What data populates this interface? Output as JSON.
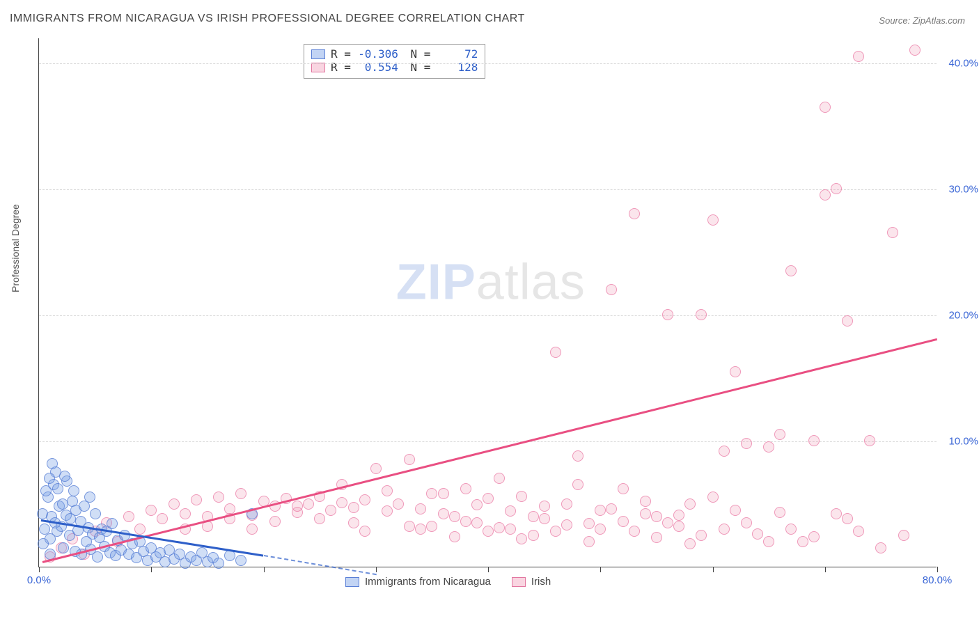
{
  "title": "IMMIGRANTS FROM NICARAGUA VS IRISH PROFESSIONAL DEGREE CORRELATION CHART",
  "source": {
    "label": "Source:",
    "value": "ZipAtlas.com"
  },
  "axes": {
    "ylabel": "Professional Degree",
    "xlim": [
      0,
      80
    ],
    "ylim": [
      0,
      42
    ],
    "xticks": [
      0,
      10,
      20,
      30,
      40,
      50,
      60,
      70,
      80
    ],
    "xtick_labels_shown": {
      "0": "0.0%",
      "80": "80.0%"
    },
    "yticks": [
      10,
      20,
      30,
      40
    ],
    "ytick_labels": {
      "10": "10.0%",
      "20": "20.0%",
      "30": "30.0%",
      "40": "40.0%"
    },
    "grid_color": "#d8d8d8",
    "tick_color": "#3a66d6"
  },
  "watermark": {
    "a": "ZIP",
    "b": "atlas"
  },
  "legend": {
    "series_a": "Immigrants from Nicaragua",
    "series_b": "Irish"
  },
  "stats": {
    "a": {
      "R": "-0.306",
      "N": "72"
    },
    "b": {
      "R": "0.554",
      "N": "128"
    }
  },
  "series": {
    "blue": {
      "color_fill": "rgba(120,160,230,0.35)",
      "color_stroke": "rgba(80,120,210,0.7)",
      "marker_radius": 8,
      "trend": {
        "x1": 0.2,
        "y1": 3.8,
        "x2": 20,
        "y2": 1.0,
        "dash_to_x": 30,
        "dash_to_y": -0.5
      },
      "points": [
        [
          0.3,
          4.2
        ],
        [
          0.5,
          3.0
        ],
        [
          0.8,
          5.5
        ],
        [
          1.0,
          2.2
        ],
        [
          1.1,
          4.0
        ],
        [
          1.3,
          6.5
        ],
        [
          1.4,
          3.5
        ],
        [
          1.5,
          7.5
        ],
        [
          1.6,
          2.8
        ],
        [
          1.8,
          4.8
        ],
        [
          2.0,
          3.2
        ],
        [
          2.1,
          5.0
        ],
        [
          2.2,
          1.5
        ],
        [
          2.4,
          4.1
        ],
        [
          2.5,
          6.8
        ],
        [
          2.7,
          2.5
        ],
        [
          2.8,
          3.8
        ],
        [
          3.0,
          5.2
        ],
        [
          3.2,
          1.2
        ],
        [
          3.3,
          4.5
        ],
        [
          3.5,
          2.9
        ],
        [
          3.7,
          3.6
        ],
        [
          3.8,
          1.0
        ],
        [
          4.0,
          4.8
        ],
        [
          4.2,
          2.0
        ],
        [
          4.4,
          3.1
        ],
        [
          4.6,
          1.4
        ],
        [
          4.8,
          2.6
        ],
        [
          5.0,
          4.2
        ],
        [
          5.2,
          0.8
        ],
        [
          5.4,
          2.3
        ],
        [
          5.6,
          3.0
        ],
        [
          5.8,
          1.6
        ],
        [
          6.0,
          2.8
        ],
        [
          6.3,
          1.1
        ],
        [
          6.5,
          3.4
        ],
        [
          6.8,
          0.9
        ],
        [
          7.0,
          2.1
        ],
        [
          7.3,
          1.3
        ],
        [
          7.6,
          2.5
        ],
        [
          8.0,
          1.0
        ],
        [
          8.3,
          1.8
        ],
        [
          8.7,
          0.7
        ],
        [
          9.0,
          2.0
        ],
        [
          9.3,
          1.2
        ],
        [
          9.7,
          0.5
        ],
        [
          10.0,
          1.5
        ],
        [
          10.4,
          0.8
        ],
        [
          10.8,
          1.1
        ],
        [
          11.2,
          0.4
        ],
        [
          11.6,
          1.3
        ],
        [
          12.0,
          0.6
        ],
        [
          12.5,
          1.0
        ],
        [
          13.0,
          0.3
        ],
        [
          13.5,
          0.8
        ],
        [
          14.0,
          0.5
        ],
        [
          14.5,
          1.1
        ],
        [
          15.0,
          0.4
        ],
        [
          15.5,
          0.7
        ],
        [
          16.0,
          0.3
        ],
        [
          17.0,
          0.9
        ],
        [
          18.0,
          0.5
        ],
        [
          19.0,
          4.2
        ],
        [
          1.2,
          8.2
        ],
        [
          2.3,
          7.2
        ],
        [
          0.6,
          6.0
        ],
        [
          0.9,
          7.0
        ],
        [
          1.7,
          6.2
        ],
        [
          3.1,
          6.0
        ],
        [
          4.5,
          5.5
        ],
        [
          0.4,
          1.8
        ],
        [
          1.0,
          1.0
        ]
      ]
    },
    "pink": {
      "color_fill": "rgba(240,150,180,0.25)",
      "color_stroke": "rgba(230,100,150,0.6)",
      "marker_radius": 8,
      "trend": {
        "x1": 0.3,
        "y1": 0.5,
        "x2": 80,
        "y2": 18.2
      },
      "points": [
        [
          1,
          0.8
        ],
        [
          2,
          1.5
        ],
        [
          3,
          2.2
        ],
        [
          4,
          1.0
        ],
        [
          5,
          2.8
        ],
        [
          6,
          3.5
        ],
        [
          7,
          2.0
        ],
        [
          8,
          4.0
        ],
        [
          9,
          3.0
        ],
        [
          10,
          4.5
        ],
        [
          11,
          3.8
        ],
        [
          12,
          5.0
        ],
        [
          13,
          4.2
        ],
        [
          14,
          5.3
        ],
        [
          15,
          4.0
        ],
        [
          16,
          5.5
        ],
        [
          17,
          4.6
        ],
        [
          18,
          5.8
        ],
        [
          19,
          4.1
        ],
        [
          20,
          5.2
        ],
        [
          21,
          4.8
        ],
        [
          22,
          5.4
        ],
        [
          23,
          4.3
        ],
        [
          24,
          5.0
        ],
        [
          25,
          5.6
        ],
        [
          26,
          4.5
        ],
        [
          27,
          5.1
        ],
        [
          28,
          4.7
        ],
        [
          29,
          5.3
        ],
        [
          30,
          7.8
        ],
        [
          31,
          4.4
        ],
        [
          32,
          5.0
        ],
        [
          33,
          8.5
        ],
        [
          34,
          4.6
        ],
        [
          35,
          3.2
        ],
        [
          36,
          5.8
        ],
        [
          37,
          4.0
        ],
        [
          38,
          6.2
        ],
        [
          39,
          3.5
        ],
        [
          40,
          5.4
        ],
        [
          41,
          7.0
        ],
        [
          42,
          3.0
        ],
        [
          43,
          5.6
        ],
        [
          44,
          2.5
        ],
        [
          45,
          4.8
        ],
        [
          46,
          17.0
        ],
        [
          47,
          3.3
        ],
        [
          48,
          6.5
        ],
        [
          49,
          2.0
        ],
        [
          50,
          4.5
        ],
        [
          51,
          22.0
        ],
        [
          52,
          3.6
        ],
        [
          53,
          28.0
        ],
        [
          54,
          5.2
        ],
        [
          55,
          2.3
        ],
        [
          56,
          20.0
        ],
        [
          57,
          4.1
        ],
        [
          58,
          1.8
        ],
        [
          59,
          20.0
        ],
        [
          60,
          27.5
        ],
        [
          60,
          5.5
        ],
        [
          61,
          3.0
        ],
        [
          62,
          15.5
        ],
        [
          63,
          9.8
        ],
        [
          64,
          2.6
        ],
        [
          65,
          9.5
        ],
        [
          66,
          4.3
        ],
        [
          67,
          23.5
        ],
        [
          68,
          2.0
        ],
        [
          69,
          10.0
        ],
        [
          70,
          36.5
        ],
        [
          70,
          29.5
        ],
        [
          71,
          30.0
        ],
        [
          72,
          3.8
        ],
        [
          72,
          19.5
        ],
        [
          73,
          40.5
        ],
        [
          74,
          10.0
        ],
        [
          75,
          1.5
        ],
        [
          76,
          26.5
        ],
        [
          77,
          2.5
        ],
        [
          78,
          41.0
        ],
        [
          25,
          3.8
        ],
        [
          27,
          6.5
        ],
        [
          29,
          2.8
        ],
        [
          31,
          6.0
        ],
        [
          33,
          3.2
        ],
        [
          35,
          5.8
        ],
        [
          37,
          2.4
        ],
        [
          39,
          4.9
        ],
        [
          41,
          3.1
        ],
        [
          43,
          2.2
        ],
        [
          45,
          3.8
        ],
        [
          47,
          5.0
        ],
        [
          49,
          3.4
        ],
        [
          51,
          4.6
        ],
        [
          53,
          2.8
        ],
        [
          55,
          4.0
        ],
        [
          57,
          3.2
        ],
        [
          59,
          2.5
        ],
        [
          61,
          9.2
        ],
        [
          63,
          3.5
        ],
        [
          65,
          2.0
        ],
        [
          67,
          3.0
        ],
        [
          69,
          2.4
        ],
        [
          71,
          4.2
        ],
        [
          73,
          2.8
        ],
        [
          48,
          8.8
        ],
        [
          52,
          6.2
        ],
        [
          56,
          3.5
        ],
        [
          44,
          4.0
        ],
        [
          46,
          2.8
        ],
        [
          50,
          3.0
        ],
        [
          54,
          4.2
        ],
        [
          58,
          5.0
        ],
        [
          62,
          4.5
        ],
        [
          66,
          10.5
        ],
        [
          34,
          3.0
        ],
        [
          36,
          4.2
        ],
        [
          38,
          3.6
        ],
        [
          40,
          2.8
        ],
        [
          42,
          4.4
        ],
        [
          28,
          3.5
        ],
        [
          15,
          3.2
        ],
        [
          17,
          3.8
        ],
        [
          19,
          3.0
        ],
        [
          21,
          3.6
        ],
        [
          23,
          4.8
        ],
        [
          13,
          3.0
        ]
      ]
    }
  }
}
